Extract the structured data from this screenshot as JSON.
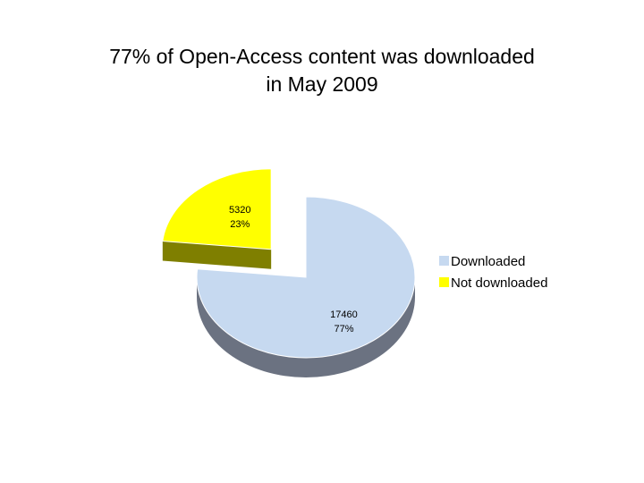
{
  "chart_data": {
    "type": "pie",
    "title_lines": [
      "77% of Open-Access content was downloaded",
      "in May 2009"
    ],
    "slices": [
      {
        "label": "Downloaded",
        "value": 17460,
        "percent": "77%",
        "color": "#C6D9F0",
        "side_color": "#6B7281",
        "exploded": false
      },
      {
        "label": "Not downloaded",
        "value": 5320,
        "percent": "23%",
        "color": "#FFFF00",
        "side_color": "#7F7F00",
        "exploded": true
      }
    ],
    "legend_position": "right",
    "three_d": true
  }
}
